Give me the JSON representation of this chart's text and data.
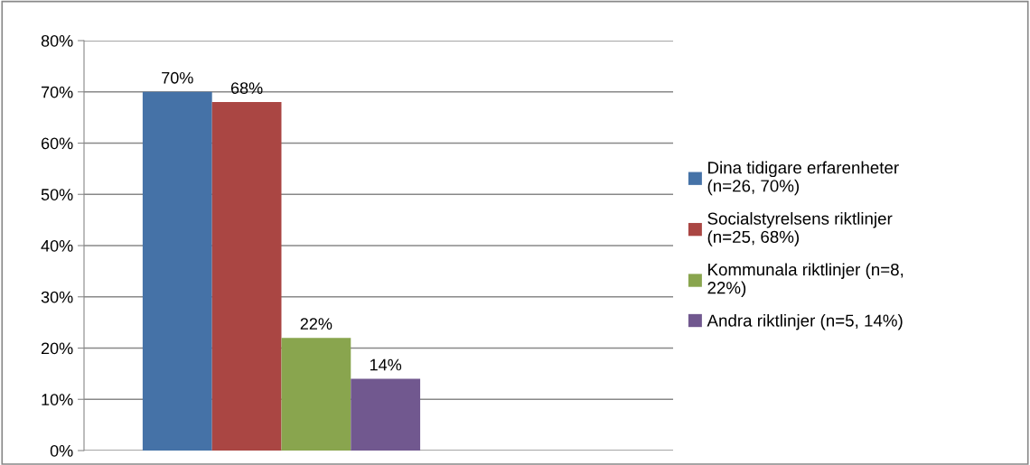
{
  "chart_data": {
    "type": "bar",
    "categories": [
      null
    ],
    "series": [
      {
        "name": "Dina tidigare erfarenheter (n=26, 70%)",
        "color": "#4572a7",
        "values": [
          70
        ],
        "value_labels": [
          "70%"
        ]
      },
      {
        "name": "Socialstyrelsens riktlinjer (n=25, 68%)",
        "color": "#aa4643",
        "values": [
          68
        ],
        "value_labels": [
          "68%"
        ]
      },
      {
        "name": "Kommunala riktlinjer (n=8, 22%)",
        "color": "#89a54e",
        "values": [
          22
        ],
        "value_labels": [
          "22%"
        ]
      },
      {
        "name": "Andra riktlinjer (n=5, 14%)",
        "color": "#71588f",
        "values": [
          14
        ],
        "value_labels": [
          "14%"
        ]
      }
    ],
    "ylim": [
      0,
      80
    ],
    "yticks": [
      {
        "value": 0,
        "label": "0%"
      },
      {
        "value": 10,
        "label": "10%"
      },
      {
        "value": 20,
        "label": "20%"
      },
      {
        "value": 30,
        "label": "30%"
      },
      {
        "value": 40,
        "label": "40%"
      },
      {
        "value": 50,
        "label": "50%"
      },
      {
        "value": 60,
        "label": "60%"
      },
      {
        "value": 70,
        "label": "70%"
      },
      {
        "value": 80,
        "label": "80%"
      }
    ],
    "grid": "y",
    "legend": "right"
  }
}
